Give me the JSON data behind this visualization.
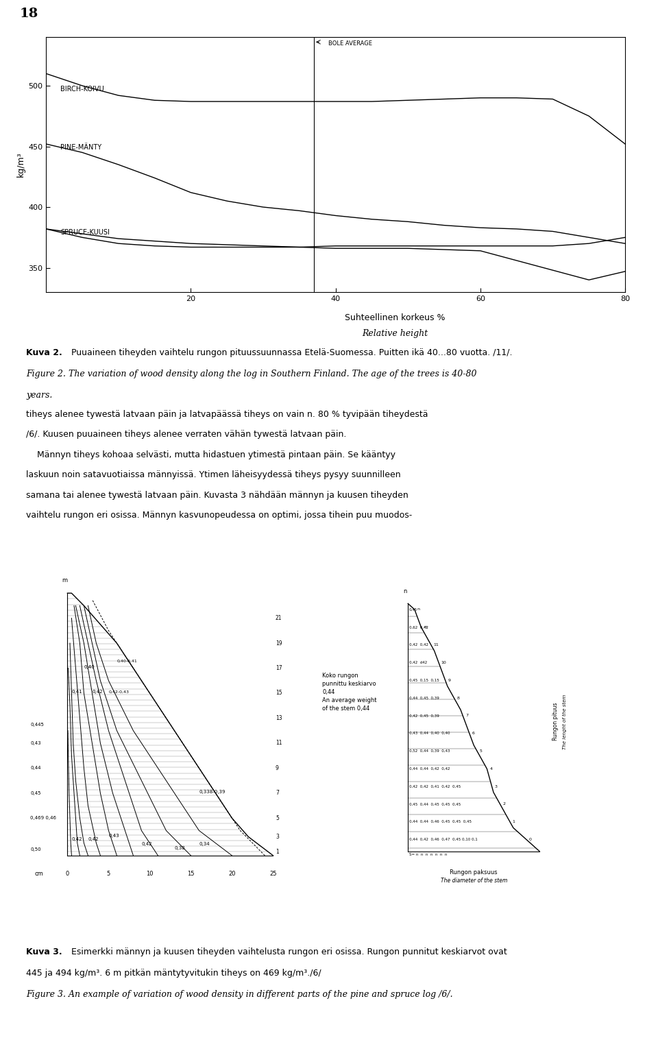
{
  "page_number": "18",
  "chart": {
    "ylabel": "kg/m³",
    "xlabel_line1": "Suhteellinen korkeus %",
    "xlabel_line2": "Relative height",
    "xlim": [
      0,
      80
    ],
    "ylim": [
      330,
      540
    ],
    "yticks": [
      350,
      400,
      450,
      500
    ],
    "xticks": [
      20,
      40,
      60,
      80
    ],
    "bole_average_x": 37,
    "bole_average_label": "BOLE AVERAGE",
    "birch_x": [
      0,
      5,
      10,
      15,
      20,
      25,
      30,
      35,
      40,
      45,
      50,
      55,
      60,
      65,
      70,
      75,
      80
    ],
    "birch_y": [
      510,
      500,
      492,
      488,
      487,
      487,
      487,
      487,
      487,
      487,
      488,
      489,
      490,
      490,
      489,
      475,
      452
    ],
    "birch_label": "BIRCH-KOIVU",
    "pine_x": [
      0,
      5,
      10,
      15,
      20,
      25,
      30,
      35,
      40,
      45,
      50,
      55,
      60,
      65,
      70,
      75,
      80
    ],
    "pine_y": [
      452,
      445,
      435,
      424,
      412,
      405,
      400,
      397,
      393,
      390,
      388,
      385,
      383,
      382,
      380,
      375,
      370
    ],
    "pine_label": "PINE-MÄNTY",
    "spruce_x": [
      0,
      5,
      10,
      15,
      20,
      25,
      30,
      35,
      40,
      45,
      50,
      55,
      60,
      65,
      70,
      75,
      80
    ],
    "spruce_y": [
      382,
      375,
      370,
      368,
      367,
      367,
      367,
      367,
      368,
      368,
      368,
      368,
      368,
      368,
      368,
      370,
      375
    ],
    "pine_decreasing_x": [
      0,
      5,
      10,
      15,
      20,
      25,
      30,
      35,
      40,
      45,
      50,
      55,
      60,
      65,
      70,
      75,
      80
    ],
    "pine_decreasing_y": [
      382,
      378,
      374,
      372,
      370,
      369,
      368,
      367,
      366,
      366,
      366,
      365,
      364,
      356,
      348,
      340,
      347
    ],
    "spruce_label": "SPRUCE-KUUSI",
    "line_color": "#000000",
    "bg_color": "#ffffff"
  },
  "caption1_bold": "Kuva 2.",
  "caption1_normal": " Puuaineen tiheyden vaihtelu rungon pituussuunnassa Etelä-Suomessa. Puitten ikä 40...80 vuotta. /11/.",
  "caption2_italic": "Figure 2. The variation of wood density along the log in Southern Finland. The age of the trees is 40-80",
  "caption2_italic2": "years.",
  "body_text": [
    "tiheys alenee tywestä latvaan päin ja latvapäässä tiheys on vain n. 80 % tyvipään tiheydestä",
    "/6/. Kuusen puuaineen tiheys alenee verraten vähän tywestä latvaan päin.",
    "    Männyn tiheys kohoaa selvästi, mutta hidastuen ytimestä pintaan päin. Se kääntyy",
    "laskuun noin satavuotiaissa männyissä. Ytimen läheisyydessä tiheys pysyy suunnilleen",
    "samana tai alenee tywestä latvaan päin. Kuvasta 3 nähdään männyn ja kuusen tiheyden",
    "vaihtelu rungon eri osissa. Männyn kasvunopeudessa on optimi, jossa tihein puu muodos-"
  ],
  "caption3_bold": "Kuva 3.",
  "caption3_normal": " Esimerkki männyn ja kuusen tiheyden vaihtelusta rungon eri osissa. Rungon punnitut keskiarvot ovat",
  "caption3_normal2": "445 ja 494 kg/m³. 6 m pitkän mäntytyvitukin tiheys on 469 kg/m³./6/",
  "caption3_italic": "Figure 3. An example of variation of wood density in different parts of the pine and spruce log /6/."
}
